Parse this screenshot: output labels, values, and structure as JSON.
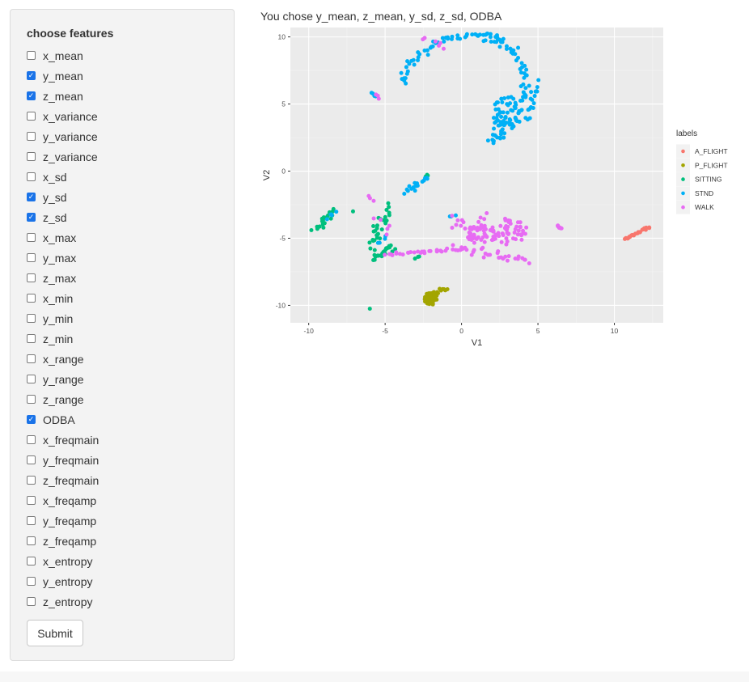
{
  "sidebar": {
    "title": "choose features",
    "features": [
      {
        "label": "x_mean",
        "checked": false
      },
      {
        "label": "y_mean",
        "checked": true
      },
      {
        "label": "z_mean",
        "checked": true
      },
      {
        "label": "x_variance",
        "checked": false
      },
      {
        "label": "y_variance",
        "checked": false
      },
      {
        "label": "z_variance",
        "checked": false
      },
      {
        "label": "x_sd",
        "checked": false
      },
      {
        "label": "y_sd",
        "checked": true
      },
      {
        "label": "z_sd",
        "checked": true
      },
      {
        "label": "x_max",
        "checked": false
      },
      {
        "label": "y_max",
        "checked": false
      },
      {
        "label": "z_max",
        "checked": false
      },
      {
        "label": "x_min",
        "checked": false
      },
      {
        "label": "y_min",
        "checked": false
      },
      {
        "label": "z_min",
        "checked": false
      },
      {
        "label": "x_range",
        "checked": false
      },
      {
        "label": "y_range",
        "checked": false
      },
      {
        "label": "z_range",
        "checked": false
      },
      {
        "label": "ODBA",
        "checked": true
      },
      {
        "label": "x_freqmain",
        "checked": false
      },
      {
        "label": "y_freqmain",
        "checked": false
      },
      {
        "label": "z_freqmain",
        "checked": false
      },
      {
        "label": "x_freqamp",
        "checked": false
      },
      {
        "label": "y_freqamp",
        "checked": false
      },
      {
        "label": "z_freqamp",
        "checked": false
      },
      {
        "label": "x_entropy",
        "checked": false
      },
      {
        "label": "y_entropy",
        "checked": false
      },
      {
        "label": "z_entropy",
        "checked": false
      }
    ],
    "submit_label": "Submit"
  },
  "main": {
    "caption": "You chose y_mean, z_mean, y_sd, z_sd, ODBA"
  },
  "chart_data": {
    "type": "scatter",
    "title": "",
    "xlabel": "V1",
    "ylabel": "V2",
    "xlim": [
      -11.2,
      13.2
    ],
    "ylim": [
      -11.3,
      10.7
    ],
    "xticks": [
      "-10",
      "-5",
      "0",
      "5",
      "10"
    ],
    "xtick_values": [
      -10,
      -5,
      0,
      5,
      10
    ],
    "yticks": [
      "-10",
      "-5",
      "0",
      "5",
      "10"
    ],
    "ytick_values": [
      -10,
      -5,
      0,
      5,
      10
    ],
    "grid": true,
    "legend_title": "labels",
    "legend_position": "right",
    "series": [
      {
        "name": "A_FLIGHT",
        "color": "#F8766D",
        "clusters": [
          {
            "shape": "line",
            "from": [
              10.7,
              -5.1
            ],
            "to": [
              12.3,
              -4.1
            ],
            "n": 22,
            "jitter": 0.05
          }
        ]
      },
      {
        "name": "P_FLIGHT",
        "color": "#A3A500",
        "clusters": [
          {
            "shape": "blob",
            "cx": -2.0,
            "cy": -9.5,
            "rx": 0.45,
            "ry": 0.45,
            "n": 55
          },
          {
            "shape": "line",
            "from": [
              -1.8,
              -9.0
            ],
            "to": [
              -1.0,
              -8.8
            ],
            "n": 10,
            "jitter": 0.08
          }
        ]
      },
      {
        "name": "SITTING",
        "color": "#00BF7D",
        "clusters": [
          {
            "shape": "line",
            "from": [
              -9.6,
              -4.5
            ],
            "to": [
              -8.5,
              -3.0
            ],
            "n": 22,
            "jitter": 0.15
          },
          {
            "shape": "line",
            "from": [
              -5.8,
              -5.8
            ],
            "to": [
              -5.5,
              -3.5
            ],
            "n": 20,
            "jitter": 0.2
          },
          {
            "shape": "line",
            "from": [
              -5.7,
              -6.5
            ],
            "to": [
              -4.5,
              -5.6
            ],
            "n": 22,
            "jitter": 0.15
          },
          {
            "shape": "line",
            "from": [
              -5.0,
              -4.0
            ],
            "to": [
              -4.7,
              -2.5
            ],
            "n": 8,
            "jitter": 0.1
          },
          {
            "shape": "line",
            "from": [
              -2.3,
              -0.5
            ],
            "to": [
              -2.2,
              -0.3
            ],
            "n": 4,
            "jitter": 0.05
          },
          {
            "shape": "line",
            "from": [
              -3.0,
              -6.5
            ],
            "to": [
              -2.8,
              -6.4
            ],
            "n": 3,
            "jitter": 0.05
          },
          {
            "shape": "line",
            "from": [
              -6.0,
              -10.3
            ],
            "to": [
              -6.0,
              -10.2
            ],
            "n": 1,
            "jitter": 0.0
          },
          {
            "shape": "line",
            "from": [
              -7.1,
              -3.0
            ],
            "to": [
              -7.1,
              -3.0
            ],
            "n": 1,
            "jitter": 0.0
          }
        ]
      },
      {
        "name": "STND",
        "color": "#00B0F6",
        "clusters": [
          {
            "shape": "arc",
            "cx": 0.9,
            "cy": 5.2,
            "r": 5.0,
            "theta1": 68,
            "theta2": 165,
            "n": 55,
            "jitter": 0.12
          },
          {
            "shape": "arc",
            "cx": 0.6,
            "cy": 6.5,
            "r": 3.6,
            "theta1": -25,
            "theta2": 75,
            "n": 45,
            "jitter": 0.2
          },
          {
            "shape": "blob",
            "cx": 3.0,
            "cy": 4.3,
            "rx": 1.0,
            "ry": 1.3,
            "n": 55
          },
          {
            "shape": "line",
            "from": [
              2.0,
              2.3
            ],
            "to": [
              3.2,
              3.5
            ],
            "n": 25,
            "jitter": 0.25
          },
          {
            "shape": "line",
            "from": [
              4.3,
              3.8
            ],
            "to": [
              5.0,
              6.5
            ],
            "n": 16,
            "jitter": 0.12
          },
          {
            "shape": "line",
            "from": [
              -3.8,
              -1.5
            ],
            "to": [
              -2.2,
              -0.6
            ],
            "n": 16,
            "jitter": 0.1
          },
          {
            "shape": "line",
            "from": [
              -5.9,
              5.8
            ],
            "to": [
              -5.6,
              5.5
            ],
            "n": 4,
            "jitter": 0.05
          },
          {
            "shape": "line",
            "from": [
              -8.6,
              -3.4
            ],
            "to": [
              -8.3,
              -3.0
            ],
            "n": 5,
            "jitter": 0.1
          },
          {
            "shape": "line",
            "from": [
              -5.5,
              -5.5
            ],
            "to": [
              -5.0,
              -5.0
            ],
            "n": 4,
            "jitter": 0.15
          },
          {
            "shape": "line",
            "from": [
              -0.8,
              -3.4
            ],
            "to": [
              -0.4,
              -3.3
            ],
            "n": 3,
            "jitter": 0.05
          }
        ]
      },
      {
        "name": "WALK",
        "color": "#E76BF3",
        "clusters": [
          {
            "shape": "line",
            "from": [
              -5.0,
              -6.2
            ],
            "to": [
              0.0,
              -5.8
            ],
            "n": 30,
            "jitter": 0.1
          },
          {
            "shape": "line",
            "from": [
              0.0,
              -5.8
            ],
            "to": [
              4.3,
              -6.8
            ],
            "n": 28,
            "jitter": 0.2
          },
          {
            "shape": "line",
            "from": [
              -0.5,
              -3.8
            ],
            "to": [
              2.0,
              -4.8
            ],
            "n": 22,
            "jitter": 0.25
          },
          {
            "shape": "blob",
            "cx": 3.1,
            "cy": -4.5,
            "rx": 1.2,
            "ry": 1.0,
            "n": 50
          },
          {
            "shape": "blob",
            "cx": 1.3,
            "cy": -4.8,
            "rx": 0.9,
            "ry": 0.7,
            "n": 25
          },
          {
            "shape": "line",
            "from": [
              0.4,
              -4.8
            ],
            "to": [
              1.6,
              -3.3
            ],
            "n": 10,
            "jitter": 0.15
          },
          {
            "shape": "line",
            "from": [
              6.2,
              -4.0
            ],
            "to": [
              6.6,
              -4.3
            ],
            "n": 8,
            "jitter": 0.05
          },
          {
            "shape": "line",
            "from": [
              -5.6,
              5.7
            ],
            "to": [
              -5.4,
              5.4
            ],
            "n": 3,
            "jitter": 0.05
          },
          {
            "shape": "line",
            "from": [
              -6.0,
              -1.9
            ],
            "to": [
              -5.8,
              -2.1
            ],
            "n": 3,
            "jitter": 0.05
          },
          {
            "shape": "line",
            "from": [
              -2.5,
              9.8
            ],
            "to": [
              -1.0,
              9.4
            ],
            "n": 6,
            "jitter": 0.15
          },
          {
            "shape": "line",
            "from": [
              -5.6,
              -3.5
            ],
            "to": [
              -4.8,
              -4.5
            ],
            "n": 5,
            "jitter": 0.2
          },
          {
            "shape": "line",
            "from": [
              -7.6,
              -10.0
            ],
            "to": [
              -7.6,
              -10.0
            ],
            "n": 0,
            "jitter": 0.0
          }
        ]
      }
    ]
  }
}
